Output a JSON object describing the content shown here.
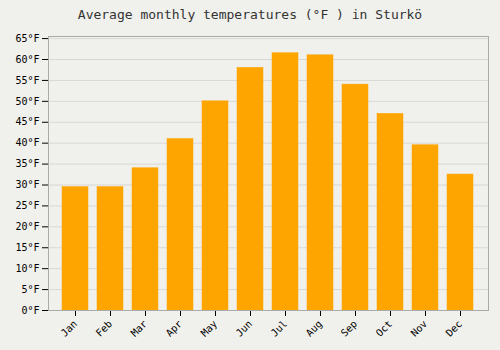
{
  "chart_data": {
    "type": "bar",
    "title": "Average monthly temperatures (°F ) in Sturkö",
    "categories": [
      "Jan",
      "Feb",
      "Mar",
      "Apr",
      "May",
      "Jun",
      "Jul",
      "Aug",
      "Sep",
      "Oct",
      "Nov",
      "Dec"
    ],
    "values": [
      29.5,
      29.5,
      34.0,
      41.0,
      50.0,
      58.0,
      61.5,
      61.0,
      54.0,
      47.0,
      39.5,
      32.5
    ],
    "color": "#FFA500",
    "ylim": [
      0,
      65.5
    ],
    "yticks": [
      {
        "value": 0,
        "label": "0°F"
      },
      {
        "value": 5,
        "label": "5°F"
      },
      {
        "value": 10,
        "label": "10°F"
      },
      {
        "value": 15,
        "label": "15°F"
      },
      {
        "value": 20,
        "label": "20°F"
      },
      {
        "value": 25,
        "label": "25°F"
      },
      {
        "value": 30,
        "label": "30°F"
      },
      {
        "value": 35,
        "label": "35°F"
      },
      {
        "value": 40,
        "label": "40°F"
      },
      {
        "value": 45,
        "label": "45°F"
      },
      {
        "value": 50,
        "label": "50°F"
      },
      {
        "value": 55,
        "label": "55°F"
      },
      {
        "value": 60,
        "label": "60°F"
      },
      {
        "value": 65,
        "label": "65°F"
      }
    ],
    "grid": true
  }
}
